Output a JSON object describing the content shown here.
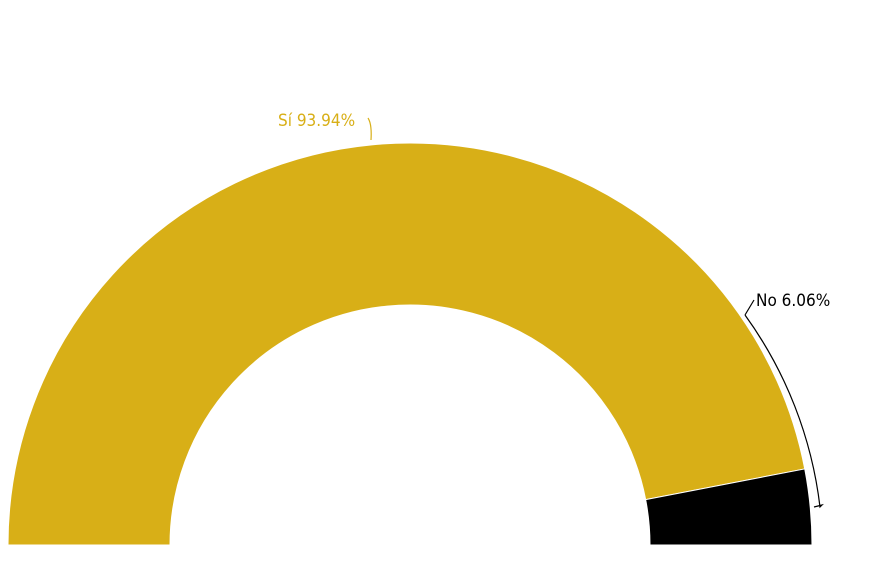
{
  "chart_data": {
    "type": "pie",
    "variant": "half-donut",
    "title": "",
    "slices": [
      {
        "name": "Sí",
        "value": 93.94,
        "label": "Sí 93.94%",
        "color": "#D8AF17",
        "label_color": "#D8AF17"
      },
      {
        "name": "No",
        "value": 6.06,
        "label": "No 6.06%",
        "color": "#000000",
        "label_color": "#000000"
      }
    ],
    "legend": "none"
  }
}
